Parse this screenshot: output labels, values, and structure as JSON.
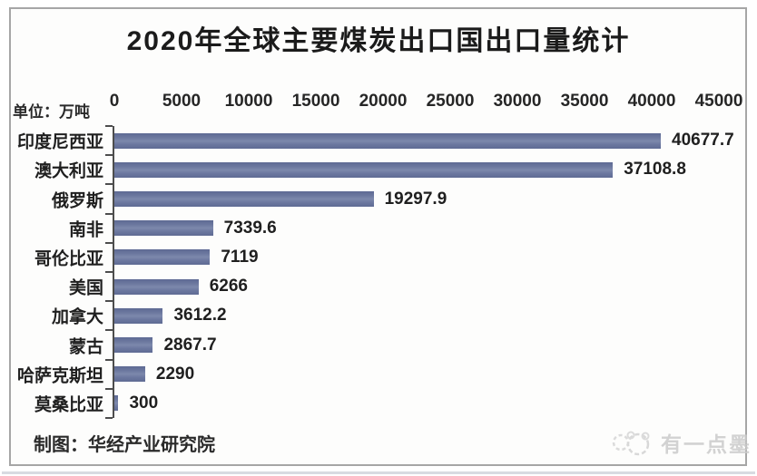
{
  "title": "2020年全球主要煤炭出口国出口量统计",
  "unit_label": "单位：万吨",
  "footer": {
    "source_label": "制图：华经产业研究院"
  },
  "watermark": {
    "text": "有一点墨",
    "icon": "panda-ink-logo-icon"
  },
  "colors": {
    "bar": "#6d79a0",
    "bar_edge": "#5e6a93",
    "bar_light": "#7d88ac",
    "axis": "#4d4d4d",
    "text": "#1f1f1f",
    "frame_border": "#a6a6a6",
    "watermark": "#cbcbcb"
  },
  "chart_data": {
    "type": "bar",
    "orientation": "horizontal",
    "title": "2020年全球主要煤炭出口国出口量统计",
    "unit": "万吨",
    "categories": [
      "印度尼西亚",
      "澳大利亚",
      "俄罗斯",
      "南非",
      "哥伦比亚",
      "美国",
      "加拿大",
      "蒙古",
      "哈萨克斯坦",
      "莫桑比亚"
    ],
    "values": [
      40677.7,
      37108.8,
      19297.9,
      7339.6,
      7119,
      6266,
      3612.2,
      2867.7,
      2290,
      300
    ],
    "value_labels": [
      "40677.7",
      "37108.8",
      "19297.9",
      "7339.6",
      "7119",
      "6266",
      "3612.2",
      "2867.7",
      "2290",
      "300"
    ],
    "xlabel": "",
    "ylabel": "",
    "xlim": [
      0,
      45000
    ],
    "x_ticks": [
      0,
      5000,
      10000,
      15000,
      20000,
      25000,
      30000,
      35000,
      40000,
      45000
    ],
    "x_tick_labels": [
      "0",
      "5000",
      "10000",
      "15000",
      "20000",
      "25000",
      "30000",
      "35000",
      "40000",
      "45000"
    ],
    "axis_position": "top",
    "grid": false,
    "legend": false
  }
}
